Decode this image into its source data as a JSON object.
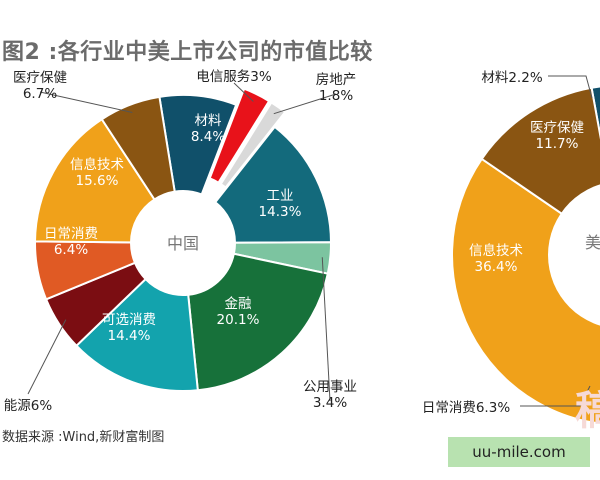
{
  "title": "图2 :各行业中美上市公司的市值比较",
  "source": "数据来源 :Wind,新财富制图",
  "watermark": "uu-mile.com",
  "watermark_ghost": "稿",
  "chart_data": [
    {
      "type": "pie",
      "center_label": "中国",
      "slices": [
        {
          "name": "材料",
          "value": 8.4,
          "color": "#10506a",
          "label": "材料\n8.4%",
          "text_color": "#ffffff"
        },
        {
          "name": "电信服务",
          "value": 3.0,
          "color": "#e8121a",
          "label": "电信服务3%",
          "text_color": "#222222",
          "explode": true
        },
        {
          "name": "房地产",
          "value": 1.8,
          "color": "#d9d9d9",
          "label": "房地产\n1.8%",
          "text_color": "#222222",
          "explode": true
        },
        {
          "name": "工业",
          "value": 14.3,
          "color": "#136a7c",
          "label": "工业\n14.3%",
          "text_color": "#ffffff"
        },
        {
          "name": "公用事业",
          "value": 3.4,
          "color": "#7cc4a0",
          "label": "公用事业\n3.4%",
          "text_color": "#222222"
        },
        {
          "name": "金融",
          "value": 20.1,
          "color": "#17713a",
          "label": "金融\n20.1%",
          "text_color": "#ffffff"
        },
        {
          "name": "可选消费",
          "value": 14.4,
          "color": "#13a3ad",
          "label": "可选消费\n14.4%",
          "text_color": "#ffffff"
        },
        {
          "name": "能源",
          "value": 6.0,
          "color": "#7b0d12",
          "label": "能源6%",
          "text_color": "#222222"
        },
        {
          "name": "日常消费",
          "value": 6.4,
          "color": "#e05a24",
          "label": "日常消费\n6.4%",
          "text_color": "#ffffff"
        },
        {
          "name": "信息技术",
          "value": 15.6,
          "color": "#f0a11a",
          "label": "信息技术\n15.6%",
          "text_color": "#ffffff"
        },
        {
          "name": "医疗保健",
          "value": 6.7,
          "color": "#8a5512",
          "label": "医疗保健\n6.7%",
          "text_color": "#222222"
        }
      ]
    },
    {
      "type": "pie",
      "center_label": "美",
      "slices": [
        {
          "name": "材料",
          "value": 2.2,
          "color": "#10506a",
          "label": "材料2.2%",
          "text_color": "#222222"
        },
        {
          "name": "日常消费",
          "value": 6.3,
          "color": "#e05a24",
          "label": "日常消费6.3%",
          "text_color": "#222222"
        },
        {
          "name": "信息技术",
          "value": 36.4,
          "color": "#f0a11a",
          "label": "信息技术\n36.4%",
          "text_color": "#ffffff"
        },
        {
          "name": "医疗保健",
          "value": 11.7,
          "color": "#8a5512",
          "label": "医疗保健\n11.7%",
          "text_color": "#ffffff"
        }
      ]
    }
  ]
}
